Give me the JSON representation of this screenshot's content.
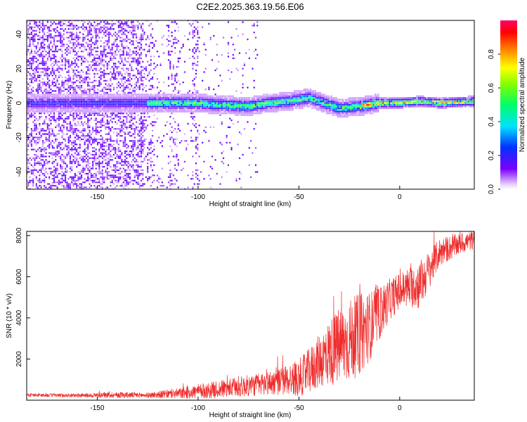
{
  "title": "C2E2.2025.363.19.56.E06",
  "chart_data": [
    {
      "type": "heatmap",
      "xlabel": "Height of straight line (km)",
      "ylabel": "Frequency (Hz)",
      "xlim": [
        -185,
        37
      ],
      "ylim": [
        -50,
        48
      ],
      "xticks": [
        -150,
        -100,
        -50,
        0
      ],
      "yticks": [
        -40,
        -20,
        0,
        20,
        40
      ],
      "band_center": [
        [
          -150,
          0
        ],
        [
          -120,
          0
        ],
        [
          -100,
          0
        ],
        [
          -90,
          -1
        ],
        [
          -75,
          -2
        ],
        [
          -65,
          0
        ],
        [
          -55,
          1
        ],
        [
          -45,
          3
        ],
        [
          -40,
          1
        ],
        [
          -30,
          -3
        ],
        [
          -20,
          -2
        ],
        [
          -10,
          0
        ],
        [
          0,
          0
        ],
        [
          10,
          1
        ],
        [
          20,
          0
        ],
        [
          37,
          1
        ]
      ],
      "colorbar": {
        "label": "Normalized spectral amplitude",
        "range": [
          0,
          1
        ],
        "ticks": [
          0.0,
          0.2,
          0.4,
          0.6,
          0.8
        ]
      }
    },
    {
      "type": "line",
      "xlabel": "Height of straight line (km)",
      "ylabel": "SNR (10 * v/v)",
      "xlim": [
        -185,
        37
      ],
      "ylim": [
        0,
        8200
      ],
      "xticks": [
        -150,
        -100,
        -50,
        0
      ],
      "yticks": [
        2000,
        4000,
        6000,
        8000
      ],
      "series": [
        {
          "name": "SNR",
          "color": "#ef2b2b",
          "x": [
            -185,
            -160,
            -140,
            -125,
            -110,
            -100,
            -90,
            -80,
            -70,
            -60,
            -50,
            -45,
            -40,
            -35,
            -30,
            -25,
            -20,
            -15,
            -10,
            -5,
            0,
            5,
            10,
            15,
            20,
            25,
            30,
            37
          ],
          "y": [
            250,
            230,
            260,
            240,
            320,
            420,
            520,
            640,
            760,
            900,
            1100,
            1400,
            1900,
            2300,
            2600,
            2900,
            3200,
            3600,
            4200,
            4900,
            5300,
            5500,
            5600,
            6400,
            7200,
            7400,
            7600,
            7800
          ],
          "spread": [
            80,
            90,
            150,
            120,
            250,
            350,
            420,
            500,
            550,
            650,
            900,
            1100,
            1300,
            1600,
            1900,
            2000,
            2000,
            1700,
            1300,
            1000,
            900,
            1000,
            1200,
            900,
            700,
            600,
            500,
            450
          ]
        }
      ]
    }
  ]
}
